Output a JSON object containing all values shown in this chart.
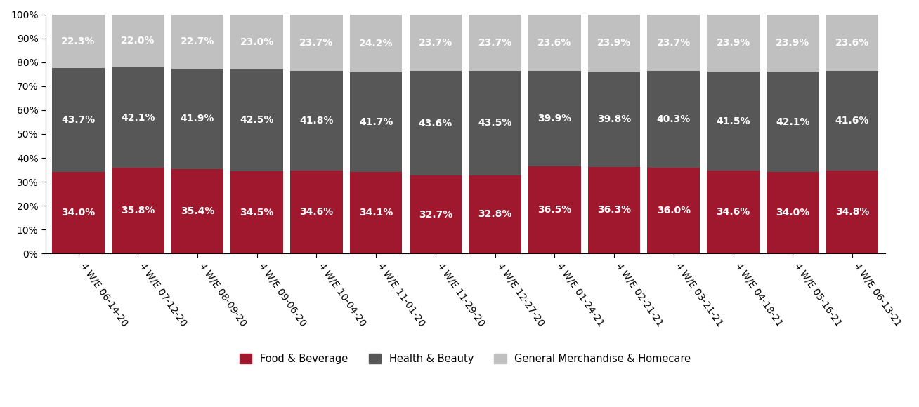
{
  "categories": [
    "4 W/E 06-14-20",
    "4 W/E 07-12-20",
    "4 W/E 08-09-20",
    "4 W/E 09-06-20",
    "4 W/E 10-04-20",
    "4 W/E 11-01-20",
    "4 W/E 11-29-20",
    "4 W/E 12-27-20",
    "4 W/E 01-24-21",
    "4 W/E 02-21-21",
    "4 W/E 03-21-21",
    "4 W/E 04-18-21",
    "4 W/E 05-16-21",
    "4 W/E 06-13-21"
  ],
  "food_beverage": [
    34.0,
    35.8,
    35.4,
    34.5,
    34.6,
    34.1,
    32.7,
    32.8,
    36.5,
    36.3,
    36.0,
    34.6,
    34.0,
    34.8
  ],
  "health_beauty": [
    43.7,
    42.1,
    41.9,
    42.5,
    41.8,
    41.7,
    43.6,
    43.5,
    39.9,
    39.8,
    40.3,
    41.5,
    42.1,
    41.6
  ],
  "general_merch": [
    22.3,
    22.0,
    22.7,
    23.0,
    23.7,
    24.2,
    23.7,
    23.7,
    23.6,
    23.9,
    23.7,
    23.9,
    23.9,
    23.6
  ],
  "color_food": "#A0182E",
  "color_health": "#575757",
  "color_general": "#C0C0C0",
  "legend_labels": [
    "Food & Beverage",
    "Health & Beauty",
    "General Merchandise & Homecare"
  ],
  "bar_width": 0.88,
  "label_fontsize": 10,
  "tick_fontsize": 10,
  "legend_fontsize": 10.5,
  "xtick_rotation": -55
}
